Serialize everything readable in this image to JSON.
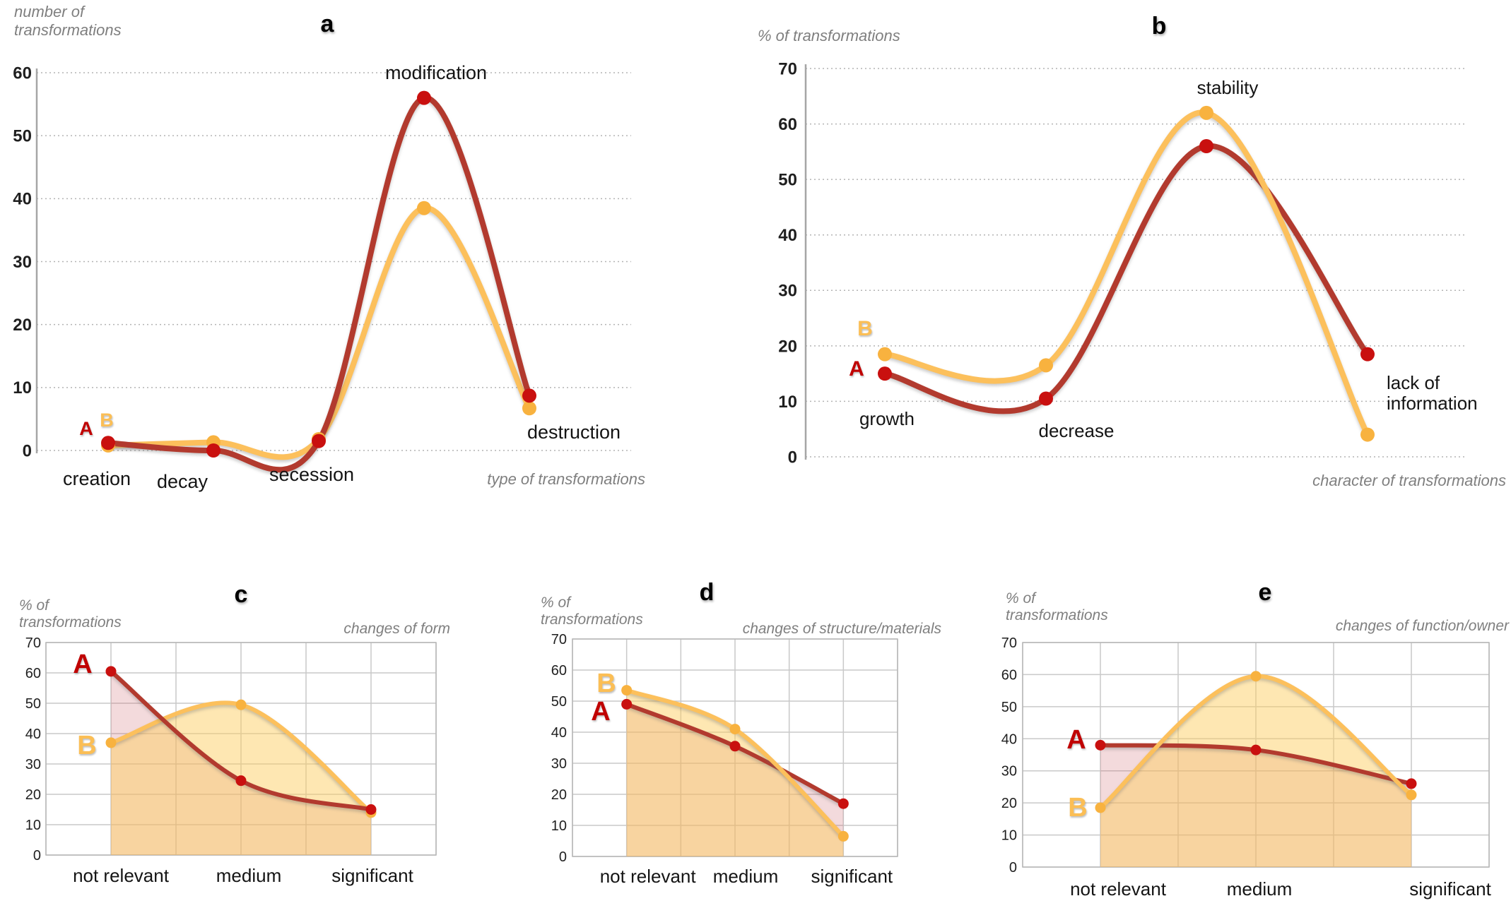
{
  "page": {
    "background": "#ffffff"
  },
  "colors": {
    "series_a_line": "#b23a2e",
    "series_a_marker": "#c9100f",
    "series_a_label": "#c00000",
    "series_b_line": "#fcc05c",
    "series_b_marker": "#f8b23f",
    "series_b_label": "#fbbe55",
    "grid_dotted": "#b3b3b3",
    "grid_solid": "#c9c9c9",
    "axis_line": "#a6a6a6",
    "muted_text": "#7f7f7f",
    "fill_a": "rgba(199,86,94,0.22)",
    "fill_b": "rgba(253,205,95,0.48)"
  },
  "chart_data": [
    {
      "id": "a",
      "type": "line",
      "title": "a",
      "y_axis_label_lines": [
        "number of",
        "transformations"
      ],
      "x_axis_label": "type of transformations",
      "ylim": [
        0,
        60
      ],
      "ytick_step": 10,
      "grid": "dotted-horizontal",
      "legend": "inline-letters A/B",
      "categories": [
        "creation",
        "decay",
        "secession",
        "modification",
        "destruction"
      ],
      "series": [
        {
          "name": "A",
          "values": [
            1.2,
            0,
            1.5,
            56,
            8.7
          ]
        },
        {
          "name": "B",
          "values": [
            0.8,
            1.3,
            1.8,
            38.5,
            6.7
          ]
        }
      ]
    },
    {
      "id": "b",
      "type": "line",
      "title": "b",
      "y_axis_label_lines": [
        "% of transformations"
      ],
      "x_axis_label": "character of transformations",
      "ylim": [
        0,
        70
      ],
      "ytick_step": 10,
      "grid": "dotted-horizontal",
      "legend": "inline-letters A/B",
      "categories": [
        "growth",
        "decrease",
        "stability",
        "lack of information"
      ],
      "series": [
        {
          "name": "A",
          "values": [
            15,
            10.5,
            56,
            18.5
          ]
        },
        {
          "name": "B",
          "values": [
            18.5,
            16.5,
            62,
            4
          ]
        }
      ]
    },
    {
      "id": "c",
      "type": "area-line",
      "title": "c",
      "y_axis_label_lines": [
        "% of",
        "transformations"
      ],
      "corner_label": "changes of form",
      "ylim": [
        0,
        70
      ],
      "ytick_step": 10,
      "grid": "solid-box",
      "legend": "inline-letters A/B",
      "categories": [
        "not relevant",
        "medium",
        "significant"
      ],
      "series": [
        {
          "name": "A",
          "values": [
            60.5,
            24.5,
            15
          ]
        },
        {
          "name": "B",
          "values": [
            37,
            49.5,
            14
          ]
        }
      ]
    },
    {
      "id": "d",
      "type": "area-line",
      "title": "d",
      "y_axis_label_lines": [
        "% of",
        "transformations"
      ],
      "corner_label": "changes of structure/materials",
      "ylim": [
        0,
        70
      ],
      "ytick_step": 10,
      "grid": "solid-box",
      "legend": "inline-letters A/B",
      "categories": [
        "not relevant",
        "medium",
        "significant"
      ],
      "series": [
        {
          "name": "A",
          "values": [
            49,
            35.5,
            17
          ]
        },
        {
          "name": "B",
          "values": [
            53.5,
            41,
            6.5
          ]
        }
      ]
    },
    {
      "id": "e",
      "type": "area-line",
      "title": "e",
      "y_axis_label_lines": [
        "% of",
        "transformations"
      ],
      "corner_label": "changes of function/owner",
      "ylim": [
        0,
        70
      ],
      "ytick_step": 10,
      "grid": "solid-box",
      "legend": "inline-letters A/B",
      "categories": [
        "not relevant",
        "medium",
        "significant"
      ],
      "series": [
        {
          "name": "A",
          "values": [
            38,
            36.5,
            26
          ]
        },
        {
          "name": "B",
          "values": [
            18.5,
            59.5,
            22.5
          ]
        }
      ]
    }
  ]
}
